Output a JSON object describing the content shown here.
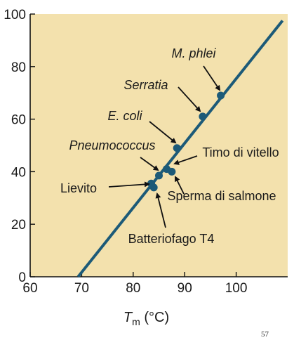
{
  "chart_data": {
    "type": "scatter",
    "xlabel_main": "T",
    "xlabel_sub": "m",
    "xlabel_unit": " (°C)",
    "ylabel": "",
    "xlim": [
      60,
      110
    ],
    "ylim": [
      0,
      100
    ],
    "xticks": [
      "60",
      "70",
      "80",
      "90",
      "100"
    ],
    "yticks": [
      "0",
      "20",
      "40",
      "60",
      "80",
      "100"
    ],
    "background_color": "#f3e1ad",
    "point_color": "#1c5a78",
    "line_color": "#1c5a78",
    "grid": false,
    "fit_line": {
      "x": [
        69.3,
        109
      ],
      "y": [
        0,
        97.5
      ]
    },
    "points": [
      {
        "name": "M. phlei",
        "x": 97,
        "y": 69,
        "italic": true
      },
      {
        "name": "Serratia",
        "x": 93.5,
        "y": 61,
        "italic": true
      },
      {
        "name": "E. coli",
        "x": 88.5,
        "y": 49,
        "italic": true
      },
      {
        "name": "Pneumococcus",
        "x": 85,
        "y": 38.5,
        "italic": true
      },
      {
        "name": "Timo di vitello",
        "x": 86.5,
        "y": 41,
        "italic": false
      },
      {
        "name": "Sperma di salmone",
        "x": 87.5,
        "y": 40,
        "italic": false
      },
      {
        "name": "Lievito",
        "x": 83.5,
        "y": 35.5,
        "italic": false
      },
      {
        "name": "Batteriofago T4",
        "x": 84,
        "y": 34,
        "italic": false
      }
    ]
  },
  "page_number": "57"
}
